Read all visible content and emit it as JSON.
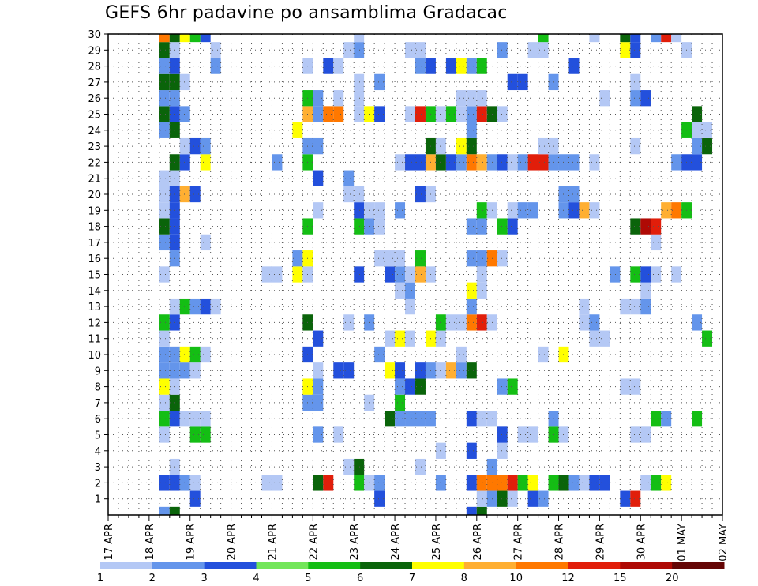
{
  "chart_data": {
    "type": "heatmap",
    "title": "GEFS 6hr padavine po ansamblima Gradacac",
    "xlabel": "",
    "ylabel": "",
    "x_tick_labels": [
      "17 APR",
      "18 APR",
      "19 APR",
      "20 APR",
      "21 APR",
      "22 APR",
      "23 APR",
      "24 APR",
      "25 APR",
      "26 APR",
      "27 APR",
      "28 APR",
      "29 APR",
      "30 APR",
      "01 MAY",
      "02 MAY"
    ],
    "y_tick_labels": [
      "1",
      "2",
      "3",
      "4",
      "5",
      "6",
      "7",
      "8",
      "9",
      "10",
      "11",
      "12",
      "13",
      "14",
      "15",
      "16",
      "17",
      "18",
      "19",
      "20",
      "21",
      "22",
      "23",
      "24",
      "25",
      "26",
      "27",
      "28",
      "29",
      "30"
    ],
    "x_range": [
      "17 APR 00Z",
      "02 MAY 00Z"
    ],
    "y_range": [
      0,
      30
    ],
    "time_step_hours": 6,
    "grid": "dotted",
    "legend": {
      "placement": "bottom",
      "labels": [
        "1",
        "2",
        "3",
        "4",
        "5",
        "6",
        "7",
        "8",
        "10",
        "12",
        "15",
        "20"
      ],
      "colors": [
        "#b4c8f5",
        "#6495eb",
        "#2350dc",
        "#73e65a",
        "#14be14",
        "#0a640a",
        "#ffff00",
        "#ffaf32",
        "#ff7800",
        "#e11e0a",
        "#af0a05",
        "#640505"
      ]
    },
    "cells_encoding": "rows[member] = list of [time_step_index_from_17APR00Z, color_class_index]; color_class_index refers to legend.colors",
    "rows": {
      "0": [
        [
          5,
          1
        ],
        [
          6,
          5
        ],
        [
          35,
          2
        ],
        [
          36,
          5
        ]
      ],
      "1": [
        [
          8,
          2
        ],
        [
          26,
          2
        ],
        [
          36,
          0
        ],
        [
          37,
          1
        ],
        [
          38,
          5
        ],
        [
          39,
          0
        ],
        [
          41,
          2
        ],
        [
          42,
          1
        ],
        [
          50,
          2
        ],
        [
          51,
          9
        ]
      ],
      "2": [
        [
          5,
          2
        ],
        [
          6,
          2
        ],
        [
          7,
          1
        ],
        [
          8,
          0
        ],
        [
          15,
          0
        ],
        [
          16,
          0
        ],
        [
          20,
          5
        ],
        [
          21,
          9
        ],
        [
          24,
          4
        ],
        [
          25,
          0
        ],
        [
          26,
          1
        ],
        [
          32,
          1
        ],
        [
          35,
          2
        ],
        [
          36,
          8
        ],
        [
          37,
          8
        ],
        [
          38,
          8
        ],
        [
          39,
          9
        ],
        [
          40,
          4
        ],
        [
          41,
          6
        ],
        [
          43,
          4
        ],
        [
          44,
          5
        ],
        [
          45,
          1
        ],
        [
          46,
          0
        ],
        [
          47,
          2
        ],
        [
          48,
          2
        ],
        [
          52,
          0
        ],
        [
          53,
          4
        ],
        [
          54,
          6
        ]
      ],
      "3": [
        [
          6,
          0
        ],
        [
          23,
          0
        ],
        [
          24,
          5
        ],
        [
          30,
          0
        ],
        [
          37,
          1
        ]
      ],
      "4": [
        [
          32,
          0
        ],
        [
          35,
          2
        ],
        [
          38,
          0
        ]
      ],
      "5": [
        [
          5,
          0
        ],
        [
          8,
          4
        ],
        [
          9,
          4
        ],
        [
          20,
          1
        ],
        [
          22,
          0
        ],
        [
          38,
          2
        ],
        [
          40,
          0
        ],
        [
          41,
          0
        ],
        [
          43,
          4
        ],
        [
          44,
          0
        ],
        [
          51,
          0
        ],
        [
          52,
          0
        ]
      ],
      "6": [
        [
          5,
          4
        ],
        [
          6,
          2
        ],
        [
          7,
          0
        ],
        [
          8,
          0
        ],
        [
          9,
          0
        ],
        [
          27,
          5
        ],
        [
          28,
          1
        ],
        [
          29,
          1
        ],
        [
          30,
          1
        ],
        [
          31,
          1
        ],
        [
          35,
          2
        ],
        [
          36,
          0
        ],
        [
          37,
          0
        ],
        [
          43,
          1
        ],
        [
          53,
          4
        ],
        [
          54,
          1
        ],
        [
          57,
          4
        ]
      ],
      "7": [
        [
          5,
          0
        ],
        [
          6,
          5
        ],
        [
          19,
          1
        ],
        [
          20,
          1
        ],
        [
          25,
          0
        ],
        [
          28,
          4
        ]
      ],
      "8": [
        [
          5,
          6
        ],
        [
          6,
          0
        ],
        [
          19,
          6
        ],
        [
          20,
          1
        ],
        [
          28,
          1
        ],
        [
          29,
          2
        ],
        [
          30,
          5
        ],
        [
          38,
          1
        ],
        [
          39,
          4
        ],
        [
          50,
          0
        ],
        [
          51,
          0
        ]
      ],
      "9": [
        [
          5,
          1
        ],
        [
          6,
          1
        ],
        [
          7,
          1
        ],
        [
          8,
          0
        ],
        [
          20,
          0
        ],
        [
          22,
          2
        ],
        [
          23,
          2
        ],
        [
          27,
          6
        ],
        [
          28,
          2
        ],
        [
          30,
          2
        ],
        [
          31,
          1
        ],
        [
          32,
          0
        ],
        [
          33,
          7
        ],
        [
          34,
          1
        ],
        [
          35,
          5
        ]
      ],
      "10": [
        [
          5,
          1
        ],
        [
          6,
          1
        ],
        [
          7,
          6
        ],
        [
          8,
          4
        ],
        [
          9,
          0
        ],
        [
          19,
          2
        ],
        [
          26,
          1
        ],
        [
          34,
          0
        ],
        [
          42,
          0
        ],
        [
          44,
          6
        ]
      ],
      "11": [
        [
          5,
          0
        ],
        [
          20,
          2
        ],
        [
          27,
          0
        ],
        [
          28,
          6
        ],
        [
          29,
          0
        ],
        [
          31,
          6
        ],
        [
          32,
          0
        ],
        [
          47,
          0
        ],
        [
          48,
          0
        ],
        [
          58,
          4
        ]
      ],
      "12": [
        [
          5,
          4
        ],
        [
          6,
          2
        ],
        [
          19,
          5
        ],
        [
          23,
          0
        ],
        [
          25,
          1
        ],
        [
          32,
          4
        ],
        [
          33,
          0
        ],
        [
          34,
          0
        ],
        [
          35,
          8
        ],
        [
          36,
          9
        ],
        [
          37,
          0
        ],
        [
          46,
          0
        ],
        [
          47,
          1
        ],
        [
          57,
          1
        ]
      ],
      "13": [
        [
          6,
          0
        ],
        [
          7,
          4
        ],
        [
          8,
          1
        ],
        [
          9,
          2
        ],
        [
          10,
          0
        ],
        [
          29,
          0
        ],
        [
          35,
          1
        ],
        [
          46,
          0
        ],
        [
          50,
          0
        ],
        [
          51,
          0
        ],
        [
          52,
          1
        ]
      ],
      "14": [
        [
          28,
          0
        ],
        [
          29,
          1
        ],
        [
          35,
          6
        ],
        [
          36,
          0
        ],
        [
          52,
          0
        ]
      ],
      "15": [
        [
          5,
          0
        ],
        [
          15,
          0
        ],
        [
          16,
          0
        ],
        [
          18,
          6
        ],
        [
          19,
          0
        ],
        [
          24,
          2
        ],
        [
          27,
          2
        ],
        [
          28,
          1
        ],
        [
          29,
          0
        ],
        [
          30,
          7
        ],
        [
          31,
          0
        ],
        [
          36,
          0
        ],
        [
          49,
          1
        ],
        [
          51,
          4
        ],
        [
          52,
          2
        ],
        [
          53,
          0
        ],
        [
          55,
          0
        ]
      ],
      "16": [
        [
          6,
          1
        ],
        [
          18,
          1
        ],
        [
          19,
          6
        ],
        [
          26,
          0
        ],
        [
          27,
          0
        ],
        [
          28,
          0
        ],
        [
          30,
          4
        ],
        [
          35,
          1
        ],
        [
          36,
          1
        ],
        [
          37,
          8
        ],
        [
          38,
          0
        ]
      ],
      "17": [
        [
          5,
          1
        ],
        [
          6,
          2
        ],
        [
          9,
          0
        ],
        [
          53,
          0
        ]
      ],
      "18": [
        [
          5,
          5
        ],
        [
          6,
          2
        ],
        [
          19,
          4
        ],
        [
          24,
          4
        ],
        [
          25,
          1
        ],
        [
          26,
          0
        ],
        [
          35,
          1
        ],
        [
          36,
          1
        ],
        [
          38,
          4
        ],
        [
          39,
          2
        ],
        [
          51,
          5
        ],
        [
          52,
          10
        ],
        [
          53,
          9
        ]
      ],
      "19": [
        [
          5,
          0
        ],
        [
          6,
          2
        ],
        [
          20,
          0
        ],
        [
          24,
          2
        ],
        [
          25,
          0
        ],
        [
          26,
          0
        ],
        [
          28,
          1
        ],
        [
          36,
          4
        ],
        [
          37,
          0
        ],
        [
          39,
          0
        ],
        [
          40,
          1
        ],
        [
          41,
          1
        ],
        [
          44,
          1
        ],
        [
          45,
          2
        ],
        [
          46,
          7
        ],
        [
          47,
          0
        ],
        [
          54,
          7
        ],
        [
          55,
          8
        ],
        [
          56,
          4
        ]
      ],
      "20": [
        [
          5,
          0
        ],
        [
          6,
          2
        ],
        [
          7,
          7
        ],
        [
          8,
          2
        ],
        [
          23,
          0
        ],
        [
          24,
          0
        ],
        [
          30,
          2
        ],
        [
          31,
          0
        ],
        [
          44,
          1
        ],
        [
          45,
          1
        ]
      ],
      "21": [
        [
          5,
          0
        ],
        [
          6,
          0
        ],
        [
          20,
          2
        ],
        [
          23,
          1
        ]
      ],
      "22": [
        [
          6,
          5
        ],
        [
          7,
          2
        ],
        [
          9,
          6
        ],
        [
          16,
          1
        ],
        [
          19,
          4
        ],
        [
          28,
          0
        ],
        [
          29,
          2
        ],
        [
          30,
          2
        ],
        [
          31,
          7
        ],
        [
          32,
          5
        ],
        [
          33,
          2
        ],
        [
          34,
          1
        ],
        [
          35,
          8
        ],
        [
          36,
          7
        ],
        [
          37,
          1
        ],
        [
          38,
          2
        ],
        [
          39,
          0
        ],
        [
          40,
          1
        ],
        [
          41,
          9
        ],
        [
          42,
          9
        ],
        [
          43,
          1
        ],
        [
          44,
          1
        ],
        [
          45,
          1
        ],
        [
          47,
          0
        ],
        [
          55,
          1
        ],
        [
          56,
          2
        ],
        [
          57,
          2
        ]
      ],
      "23": [
        [
          7,
          0
        ],
        [
          8,
          2
        ],
        [
          9,
          1
        ],
        [
          19,
          1
        ],
        [
          20,
          1
        ],
        [
          31,
          5
        ],
        [
          32,
          0
        ],
        [
          34,
          6
        ],
        [
          35,
          5
        ],
        [
          42,
          0
        ],
        [
          43,
          0
        ],
        [
          51,
          0
        ],
        [
          57,
          1
        ],
        [
          58,
          5
        ]
      ],
      "24": [
        [
          5,
          1
        ],
        [
          6,
          5
        ],
        [
          18,
          6
        ],
        [
          35,
          1
        ],
        [
          56,
          4
        ],
        [
          57,
          0
        ],
        [
          58,
          0
        ]
      ],
      "25": [
        [
          5,
          5
        ],
        [
          6,
          2
        ],
        [
          7,
          1
        ],
        [
          19,
          7
        ],
        [
          20,
          1
        ],
        [
          21,
          8
        ],
        [
          22,
          8
        ],
        [
          24,
          0
        ],
        [
          25,
          6
        ],
        [
          26,
          2
        ],
        [
          29,
          0
        ],
        [
          30,
          9
        ],
        [
          31,
          4
        ],
        [
          32,
          0
        ],
        [
          33,
          4
        ],
        [
          34,
          0
        ],
        [
          35,
          1
        ],
        [
          36,
          9
        ],
        [
          37,
          5
        ],
        [
          38,
          0
        ],
        [
          57,
          5
        ]
      ],
      "26": [
        [
          5,
          1
        ],
        [
          6,
          1
        ],
        [
          19,
          4
        ],
        [
          20,
          1
        ],
        [
          22,
          0
        ],
        [
          24,
          0
        ],
        [
          34,
          0
        ],
        [
          35,
          0
        ],
        [
          36,
          0
        ],
        [
          48,
          0
        ],
        [
          51,
          1
        ],
        [
          52,
          2
        ]
      ],
      "27": [
        [
          5,
          5
        ],
        [
          6,
          5
        ],
        [
          7,
          0
        ],
        [
          24,
          0
        ],
        [
          26,
          1
        ],
        [
          39,
          2
        ],
        [
          40,
          2
        ],
        [
          43,
          1
        ],
        [
          51,
          0
        ]
      ],
      "28": [
        [
          5,
          1
        ],
        [
          6,
          2
        ],
        [
          10,
          1
        ],
        [
          19,
          0
        ],
        [
          21,
          2
        ],
        [
          22,
          0
        ],
        [
          30,
          1
        ],
        [
          31,
          2
        ],
        [
          33,
          2
        ],
        [
          34,
          6
        ],
        [
          35,
          1
        ],
        [
          36,
          4
        ],
        [
          45,
          2
        ]
      ],
      "29": [
        [
          5,
          5
        ],
        [
          6,
          0
        ],
        [
          10,
          0
        ],
        [
          23,
          0
        ],
        [
          24,
          1
        ],
        [
          29,
          0
        ],
        [
          30,
          0
        ],
        [
          38,
          1
        ],
        [
          41,
          0
        ],
        [
          42,
          0
        ],
        [
          50,
          6
        ],
        [
          51,
          2
        ],
        [
          56,
          0
        ]
      ],
      "30": [
        [
          5,
          8
        ],
        [
          6,
          5
        ],
        [
          7,
          6
        ],
        [
          8,
          4
        ],
        [
          9,
          2
        ],
        [
          24,
          0
        ],
        [
          42,
          4
        ],
        [
          47,
          0
        ],
        [
          50,
          5
        ],
        [
          51,
          2
        ],
        [
          53,
          1
        ],
        [
          54,
          9
        ],
        [
          55,
          0
        ]
      ]
    }
  }
}
